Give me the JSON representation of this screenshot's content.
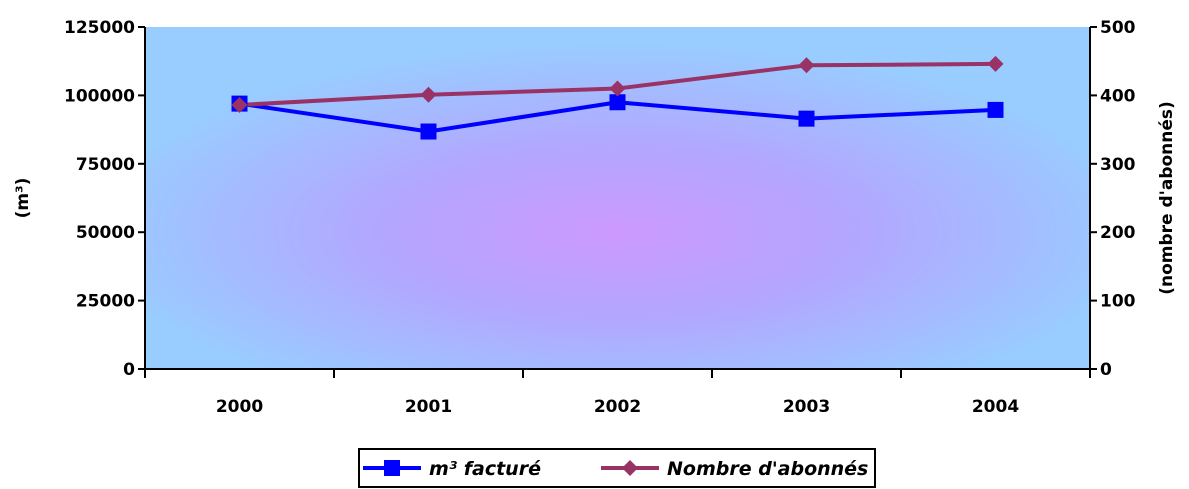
{
  "chart_data": {
    "type": "line",
    "categories": [
      "2000",
      "2001",
      "2002",
      "2003",
      "2004"
    ],
    "series": [
      {
        "name": "m³ facturé",
        "axis": "left",
        "color": "#0000ff",
        "marker": "square",
        "values": [
          97000,
          86800,
          97500,
          91500,
          94700
        ]
      },
      {
        "name": "Nombre d'abonnés",
        "axis": "right",
        "color": "#993366",
        "marker": "diamond",
        "values": [
          386,
          401,
          410,
          444,
          446
        ]
      }
    ],
    "ylabel_left": "(m³)",
    "ylabel_right": "(nombre d'abonnés)",
    "ylim_left": [
      0,
      125000
    ],
    "ylim_right": [
      0,
      500
    ],
    "yticks_left": [
      "0",
      "25000",
      "50000",
      "75000",
      "100000",
      "125000"
    ],
    "yticks_right": [
      "0",
      "100",
      "200",
      "300",
      "400",
      "500"
    ],
    "grid": false,
    "legend_position": "bottom",
    "plot_background": "gradient light-blue to violet center"
  }
}
